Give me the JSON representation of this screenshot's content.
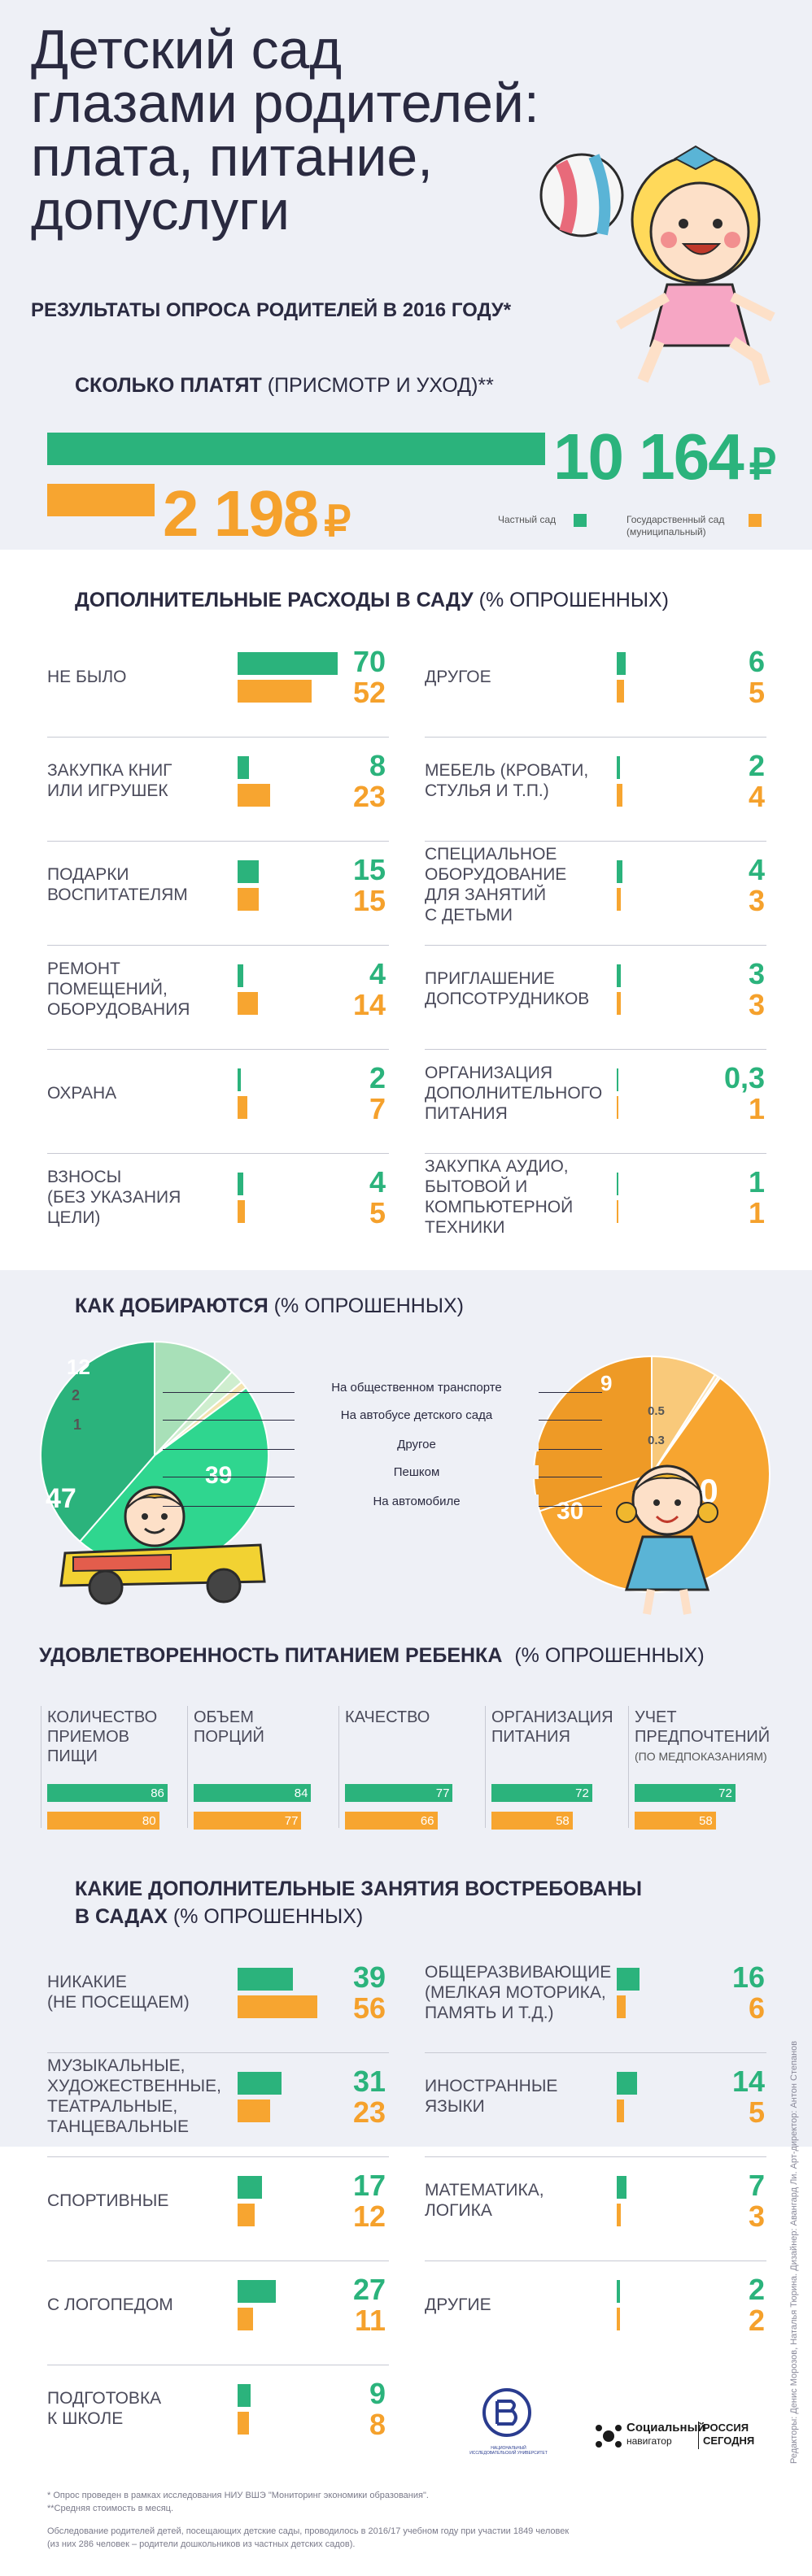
{
  "colors": {
    "private": "#2bb37c",
    "public": "#f7a530",
    "band": "#eef0f6",
    "text": "#2a2a40"
  },
  "header": {
    "title_lines": [
      "Детский сад",
      "глазами родителей:",
      "плата, питание,",
      "допуслуги"
    ],
    "subtitle": "РЕЗУЛЬТАТЫ ОПРОСА РОДИТЕЛЕЙ В 2016 ГОДУ*"
  },
  "payment": {
    "title_bold": "СКОЛЬКО ПЛАТЯТ",
    "title_light": "(ПРИСМОТР И УХОД)**",
    "private_value": "10 164",
    "public_value": "2 198",
    "currency": "₽",
    "legend_private": "Частный сад",
    "legend_public": "Государственный сад (муниципальный)"
  },
  "chart_data": [
    {
      "type": "bar",
      "title": "ДОПОЛНИТЕЛЬНЫЕ РАСХОДЫ В САДУ (% ОПРОШЕННЫХ)",
      "categories": [
        "НЕ БЫЛО",
        "ЗАКУПКА КНИГ ИЛИ ИГРУШЕК",
        "ПОДАРКИ ВОСПИТАТЕЛЯМ",
        "РЕМОНТ ПОМЕЩЕНИЙ, ОБОРУДОВАНИЯ",
        "ОХРАНА",
        "ВЗНОСЫ (БЕЗ УКАЗАНИЯ ЦЕЛИ)",
        "ДРУГОЕ",
        "МЕБЕЛЬ (КРОВАТИ, СТУЛЬЯ И Т.П.)",
        "СПЕЦИАЛЬНОЕ ОБОРУДОВАНИЕ ДЛЯ ЗАНЯТИЙ С ДЕТЬМИ",
        "ПРИГЛАШЕНИЕ ДОПСОТРУДНИКОВ",
        "ОРГАНИЗАЦИЯ ДОПОЛНИТЕЛЬНОГО ПИТАНИЯ",
        "ЗАКУПКА АУДИО, БЫТОВОЙ И КОМПЬЮТЕРНОЙ ТЕХНИКИ"
      ],
      "series": [
        {
          "name": "Частный сад",
          "values": [
            70,
            8,
            15,
            4,
            2,
            4,
            6,
            2,
            4,
            3,
            0.3,
            1
          ]
        },
        {
          "name": "Государственный сад (муниципальный)",
          "values": [
            52,
            23,
            15,
            14,
            7,
            5,
            5,
            4,
            3,
            3,
            1,
            1
          ]
        }
      ]
    },
    {
      "type": "pie",
      "title": "КАК ДОБИРАЮТСЯ (% ОПРОШЕННЫХ)",
      "categories": [
        "На общественном транспорте",
        "На автобусе детского сада",
        "Другое",
        "Пешком",
        "На автомобиле"
      ],
      "series": [
        {
          "name": "Частный сад",
          "values": [
            12,
            2,
            1,
            47,
            39
          ]
        },
        {
          "name": "Государственный сад (муниципальный)",
          "values": [
            9,
            0.5,
            0.3,
            60,
            30
          ]
        }
      ]
    },
    {
      "type": "bar",
      "title": "УДОВЛЕТВОРЕННОСТЬ ПИТАНИЕМ РЕБЕНКА (% ОПРОШЕННЫХ)",
      "categories": [
        "КОЛИЧЕСТВО ПРИЕМОВ ПИЩИ",
        "ОБЪЕМ ПОРЦИЙ",
        "КАЧЕСТВО",
        "ОРГАНИЗАЦИЯ ПИТАНИЯ",
        "УЧЕТ ПРЕДПОЧТЕНИЙ"
      ],
      "series": [
        {
          "name": "Частный сад",
          "values": [
            86,
            84,
            77,
            72,
            72
          ]
        },
        {
          "name": "Государственный сад (муниципальный)",
          "values": [
            80,
            77,
            66,
            58,
            58
          ]
        }
      ]
    },
    {
      "type": "bar",
      "title": "КАКИЕ ДОПОЛНИТЕЛЬНЫЕ ЗАНЯТИЯ ВОСТРЕБОВАНЫ В САДАХ (% ОПРОШЕННЫХ)",
      "categories": [
        "НИКАКИЕ (НЕ ПОСЕЩАЕМ)",
        "МУЗЫКАЛЬНЫЕ, ХУДОЖЕСТВЕННЫЕ, ТЕАТРАЛЬНЫЕ, ТАНЦЕВАЛЬНЫЕ",
        "СПОРТИВНЫЕ",
        "С ЛОГОПЕДОМ",
        "ПОДГОТОВКА К ШКОЛЕ",
        "ОБЩЕРАЗВИВАЮЩИЕ (МЕЛКАЯ МОТОРИКА, ПАМЯТЬ И Т.Д.)",
        "ИНОСТРАННЫЕ ЯЗЫКИ",
        "МАТЕМАТИКА, ЛОГИКА",
        "ДРУГИЕ"
      ],
      "series": [
        {
          "name": "Частный сад",
          "values": [
            39,
            31,
            17,
            27,
            9,
            16,
            14,
            7,
            2
          ]
        },
        {
          "name": "Государственный сад (муниципальный)",
          "values": [
            56,
            23,
            12,
            11,
            8,
            6,
            5,
            3,
            2
          ]
        }
      ]
    }
  ],
  "expenses": {
    "title_bold": "ДОПОЛНИТЕЛЬНЫЕ РАСХОДЫ В САДУ",
    "title_light": "(% ОПРОШЕННЫХ)",
    "left": [
      {
        "label": [
          "НЕ БЫЛО"
        ],
        "g": 70,
        "o": 52
      },
      {
        "label": [
          "ЗАКУПКА КНИГ",
          "ИЛИ ИГРУШЕК"
        ],
        "g": 8,
        "o": 23
      },
      {
        "label": [
          "ПОДАРКИ",
          "ВОСПИТАТЕЛЯМ"
        ],
        "g": 15,
        "o": 15
      },
      {
        "label": [
          "РЕМОНТ",
          "ПОМЕЩЕНИЙ,",
          "ОБОРУДОВАНИЯ"
        ],
        "g": 4,
        "o": 14
      },
      {
        "label": [
          "ОХРАНА"
        ],
        "g": 2,
        "o": 7
      },
      {
        "label": [
          "ВЗНОСЫ",
          "(БЕЗ УКАЗАНИЯ",
          "ЦЕЛИ)"
        ],
        "g": 4,
        "o": 5
      }
    ],
    "right": [
      {
        "label": [
          "ДРУГОЕ"
        ],
        "g": 6,
        "o": 5
      },
      {
        "label": [
          "МЕБЕЛЬ (КРОВАТИ,",
          "СТУЛЬЯ И Т.П.)"
        ],
        "g": 2,
        "o": 4
      },
      {
        "label": [
          "СПЕЦИАЛЬНОЕ",
          "ОБОРУДОВАНИЕ",
          "ДЛЯ ЗАНЯТИЙ",
          "С ДЕТЬМИ"
        ],
        "g": 4,
        "o": 3
      },
      {
        "label": [
          "ПРИГЛАШЕНИЕ",
          "ДОПСОТРУДНИКОВ"
        ],
        "g": 3,
        "o": 3
      },
      {
        "label": [
          "ОРГАНИЗАЦИЯ",
          "ДОПОЛНИТЕЛЬНОГО",
          "ПИТАНИЯ"
        ],
        "g": "0,3",
        "gv": 0.3,
        "o": 1
      },
      {
        "label": [
          "ЗАКУПКА АУДИО,",
          "БЫТОВОЙ И",
          "КОМПЬЮТЕРНОЙ",
          "ТЕХНИКИ"
        ],
        "g": 1,
        "o": 1
      }
    ]
  },
  "transport": {
    "title_bold": "КАК ДОБИРАЮТСЯ",
    "title_light": "(% ОПРОШЕННЫХ)",
    "legend": [
      "На общественном транспорте",
      "На автобусе детского сада",
      "Другое",
      "Пешком",
      "На автомобиле"
    ],
    "private_labels": [
      "12",
      "2",
      "1",
      "47",
      "39"
    ],
    "public_labels": [
      "9",
      "0.5",
      "0.3",
      "60",
      "30"
    ]
  },
  "food": {
    "title_bold": "УДОВЛЕТВОРЕННОСТЬ ПИТАНИЕМ РЕБЕНКА",
    "title_light": "(% ОПРОШЕННЫХ)",
    "cols": [
      {
        "label": [
          "КОЛИЧЕСТВО",
          "ПРИЕМОВ",
          "ПИЩИ"
        ],
        "note": "",
        "g": 86,
        "o": 80
      },
      {
        "label": [
          "ОБЪЕМ",
          "ПОРЦИЙ"
        ],
        "note": "",
        "g": 84,
        "o": 77
      },
      {
        "label": [
          "КАЧЕСТВО"
        ],
        "note": "",
        "g": 77,
        "o": 66
      },
      {
        "label": [
          "ОРГАНИЗАЦИЯ",
          "ПИТАНИЯ"
        ],
        "note": "",
        "g": 72,
        "o": 58
      },
      {
        "label": [
          "УЧЕТ",
          "ПРЕДПОЧТЕНИЙ"
        ],
        "note": "(ПО МЕДПОКАЗАНИЯМ)",
        "g": 72,
        "o": 58
      }
    ]
  },
  "classes": {
    "title_bold_1": "КАКИЕ ДОПОЛНИТЕЛЬНЫЕ ЗАНЯТИЯ ВОСТРЕБОВАНЫ",
    "title_bold_2": "В САДАХ",
    "title_light": "(% ОПРОШЕННЫХ)",
    "left": [
      {
        "label": [
          "НИКАКИЕ",
          "(НЕ ПОСЕЩАЕМ)"
        ],
        "g": 39,
        "o": 56
      },
      {
        "label": [
          "МУЗЫКАЛЬНЫЕ,",
          "ХУДОЖЕСТВЕННЫЕ,",
          "ТЕАТРАЛЬНЫЕ,",
          "ТАНЦЕВАЛЬНЫЕ"
        ],
        "g": 31,
        "o": 23
      },
      {
        "label": [
          "СПОРТИВНЫЕ"
        ],
        "g": 17,
        "o": 12
      },
      {
        "label": [
          "С ЛОГОПЕДОМ"
        ],
        "g": 27,
        "o": 11
      },
      {
        "label": [
          "ПОДГОТОВКА",
          "К ШКОЛЕ"
        ],
        "g": 9,
        "o": 8
      }
    ],
    "right": [
      {
        "label": [
          "ОБЩЕРАЗВИВАЮЩИЕ",
          "(МЕЛКАЯ МОТОРИКА,",
          "ПАМЯТЬ И Т.Д.)"
        ],
        "g": 16,
        "o": 6
      },
      {
        "label": [
          "ИНОСТРАННЫЕ",
          "ЯЗЫКИ"
        ],
        "g": 14,
        "o": 5
      },
      {
        "label": [
          "МАТЕМАТИКА,",
          "ЛОГИКА"
        ],
        "g": 7,
        "o": 3
      },
      {
        "label": [
          "ДРУГИЕ"
        ],
        "g": 2,
        "o": 2
      }
    ]
  },
  "credits": "Редакторы: Денис Морозов, Наталья Тюрина. Дизайнер: Авангард Ли. Арт-директор: Антон Степанов",
  "logos": {
    "hse_text": "НАЦИОНАЛЬНЫЙ ИССЛЕДОВАТЕЛЬСКИЙ УНИВЕРСИТЕТ",
    "sn_1": "Социальный",
    "sn_2": "навигатор",
    "rs_1": "РОССИЯ",
    "rs_2": "СЕГОДНЯ"
  },
  "footnotes": [
    "* Опрос проведен в рамках исследования НИУ ВШЭ \"Мониторинг экономики образования\".",
    "**Средняя стоимость в месяц.",
    "Обследование родителей детей, посещающих детские сады, проводилось в 2016/17 учебном году при участии 1849 человек",
    "(из них 286 человек – родители дошкольников из частных детских садов)."
  ]
}
